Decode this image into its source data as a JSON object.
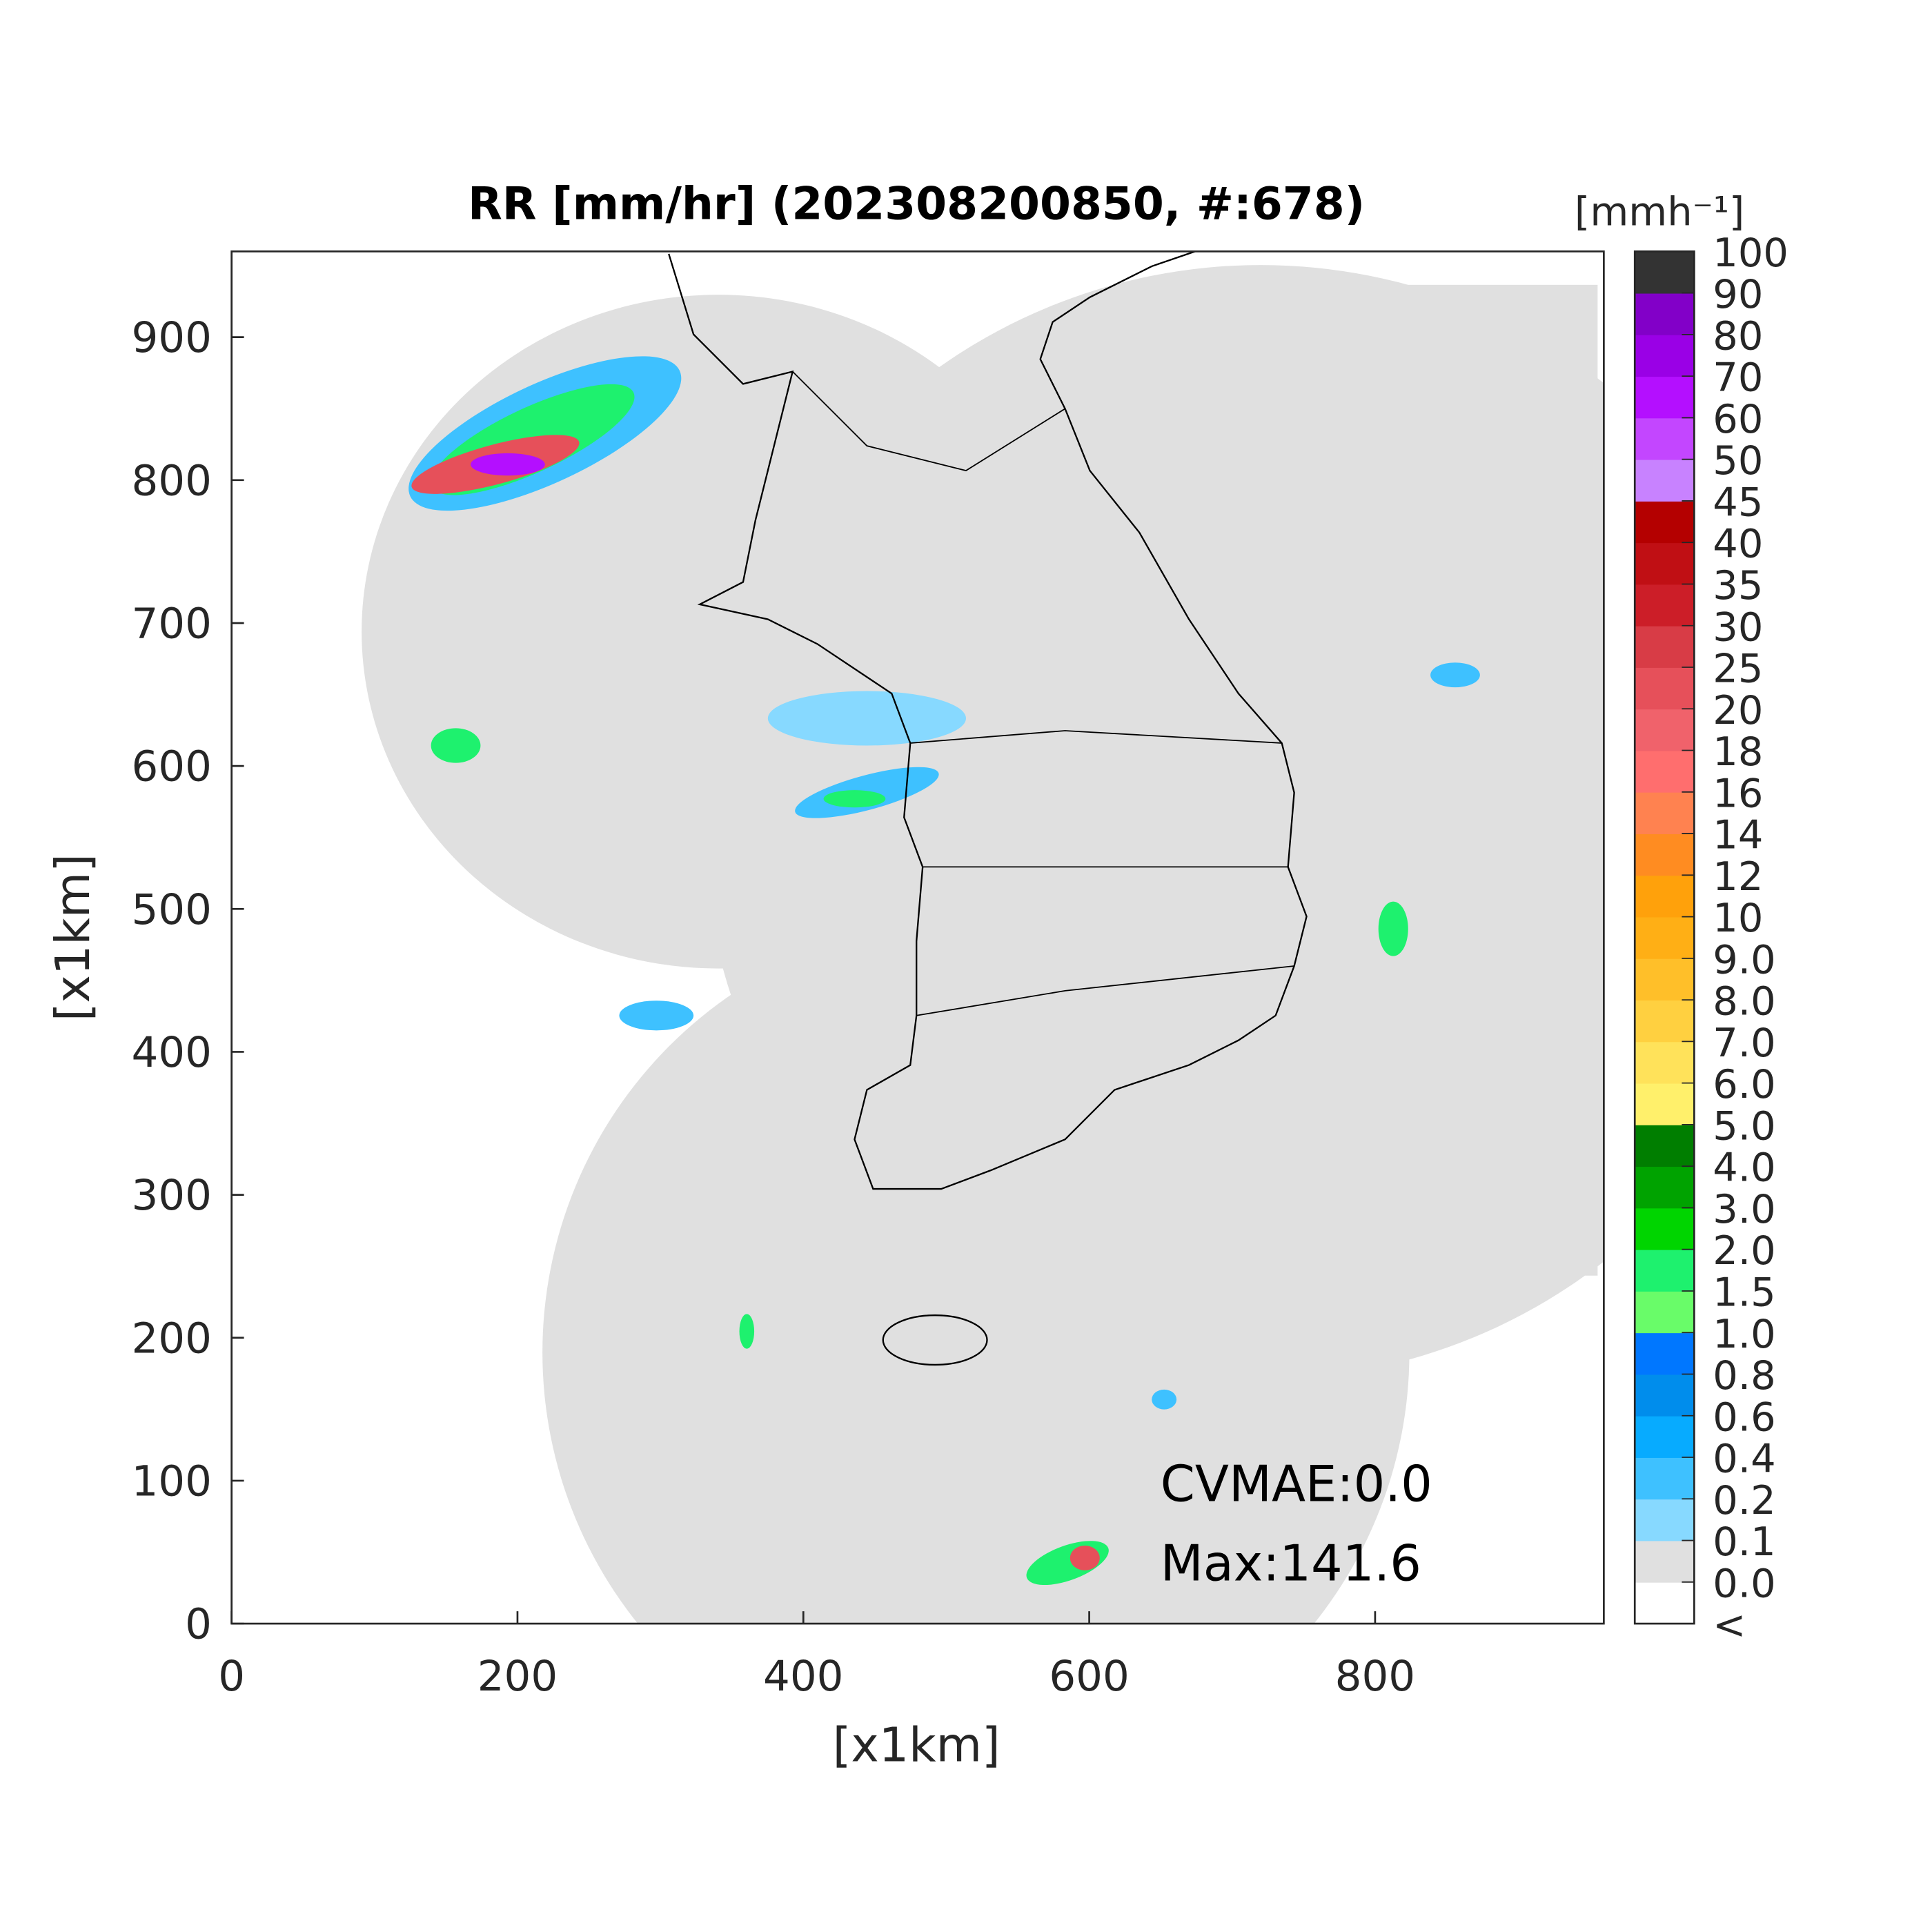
{
  "title": "RR [mm/hr] (202308200850, #:678)",
  "x_label": "[x1km]",
  "y_label": "[x1km]",
  "xlim": [
    0,
    960
  ],
  "ylim": [
    0,
    960
  ],
  "xticks": [
    0,
    200,
    400,
    600,
    800
  ],
  "yticks": [
    0,
    100,
    200,
    300,
    400,
    500,
    600,
    700,
    800,
    900
  ],
  "annotations": [
    "CVMAE:0.0",
    "Max:141.6"
  ],
  "colorbar": {
    "unit": "[mmh⁻¹]",
    "ticks": [
      "<",
      {
        "value": 0,
        "label": "0.0"
      },
      0.1,
      0.2,
      0.4,
      0.6,
      0.8,
      {
        "value": 1,
        "label": "1.0"
      },
      1.5,
      {
        "value": 2,
        "label": "2.0"
      },
      {
        "value": 3,
        "label": "3.0"
      },
      {
        "value": 4,
        "label": "4.0"
      },
      {
        "value": 5,
        "label": "5.0"
      },
      {
        "value": 6,
        "label": "6.0"
      },
      {
        "value": 7,
        "label": "7.0"
      },
      {
        "value": 8,
        "label": "8.0"
      },
      {
        "value": 9,
        "label": "9.0"
      },
      10,
      12,
      14,
      16,
      18,
      20,
      25,
      30,
      35,
      40,
      45,
      50,
      60,
      70,
      80,
      90,
      100
    ],
    "colors": [
      "#ffffff",
      "#e0e0e0",
      "#87d9ff",
      "#3ec1ff",
      "#07abff",
      "#008dec",
      "#0077ff",
      "#69fc69",
      "#1ef16e",
      "#00d500",
      "#00a300",
      "#007e00",
      "#fff06b",
      "#ffe25a",
      "#ffd040",
      "#ffbf29",
      "#ffaf15",
      "#ffa10b",
      "#ff8c21",
      "#ff8250",
      "#ff6e6e",
      "#f0626b",
      "#e6505a",
      "#d83c46",
      "#cc1e28",
      "#c00f14",
      "#b40000",
      "#c882ff",
      "#c346ff",
      "#b40fff",
      "#9a00e6",
      "#8200c8",
      "#333333"
    ]
  }
}
